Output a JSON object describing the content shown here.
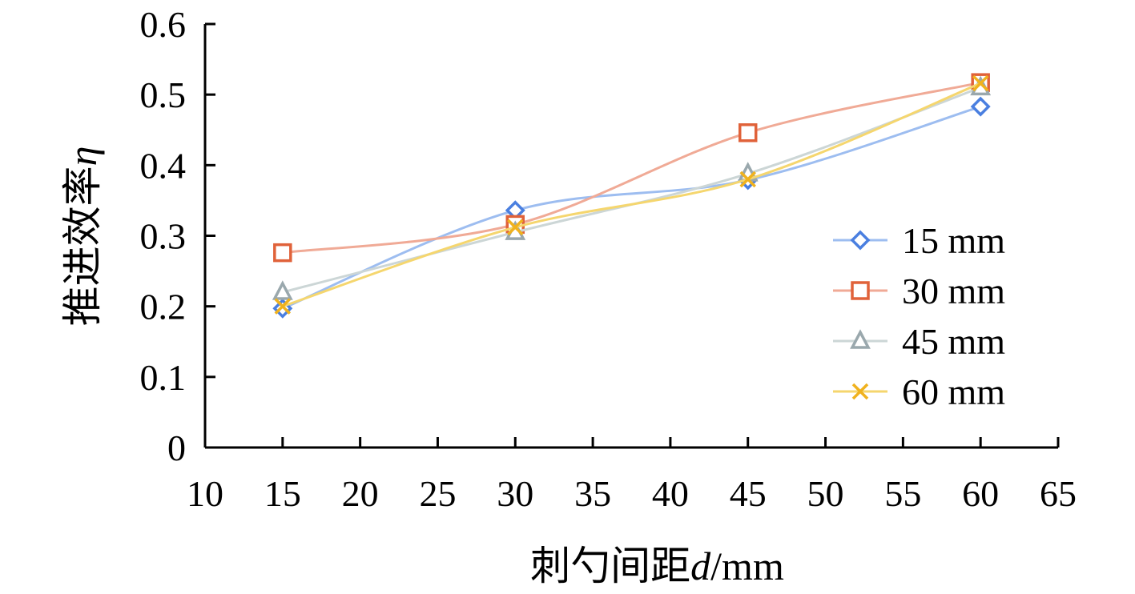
{
  "chart_data": {
    "type": "line",
    "title": "",
    "xlabel": "刺勺间距d/mm",
    "xlabel_parts": {
      "prefix": "刺勺间距",
      "var": "d",
      "suffix": "/mm"
    },
    "ylabel": "推进效率η",
    "ylabel_parts": {
      "prefix": "推进效率",
      "var": "η"
    },
    "xlim": [
      10,
      65
    ],
    "ylim": [
      0,
      0.6
    ],
    "xticks": [
      10,
      15,
      20,
      25,
      30,
      35,
      40,
      45,
      50,
      55,
      60,
      65
    ],
    "yticks": [
      0,
      0.1,
      0.2,
      0.3,
      0.4,
      0.5,
      0.6
    ],
    "ytick_labels": [
      "0",
      "0.1",
      "0.2",
      "0.3",
      "0.4",
      "0.5",
      "0.6"
    ],
    "grid": false,
    "smooth": true,
    "legend_position": "right",
    "x": [
      15,
      30,
      45,
      60
    ],
    "series": [
      {
        "name": "15 mm",
        "values": [
          0.197,
          0.336,
          0.379,
          0.483
        ],
        "color": "#4a7fe0",
        "line_color": "#9dbdf0",
        "marker": "diamond"
      },
      {
        "name": "30 mm",
        "values": [
          0.276,
          0.316,
          0.446,
          0.517
        ],
        "color": "#e0623a",
        "line_color": "#f0aa96",
        "marker": "square"
      },
      {
        "name": "45 mm",
        "values": [
          0.22,
          0.305,
          0.388,
          0.51
        ],
        "color": "#9aa8ad",
        "line_color": "#ccd6d6",
        "marker": "triangle"
      },
      {
        "name": "60 mm",
        "values": [
          0.2,
          0.312,
          0.38,
          0.516
        ],
        "color": "#f0b21e",
        "line_color": "#f5d66e",
        "marker": "x"
      }
    ]
  }
}
